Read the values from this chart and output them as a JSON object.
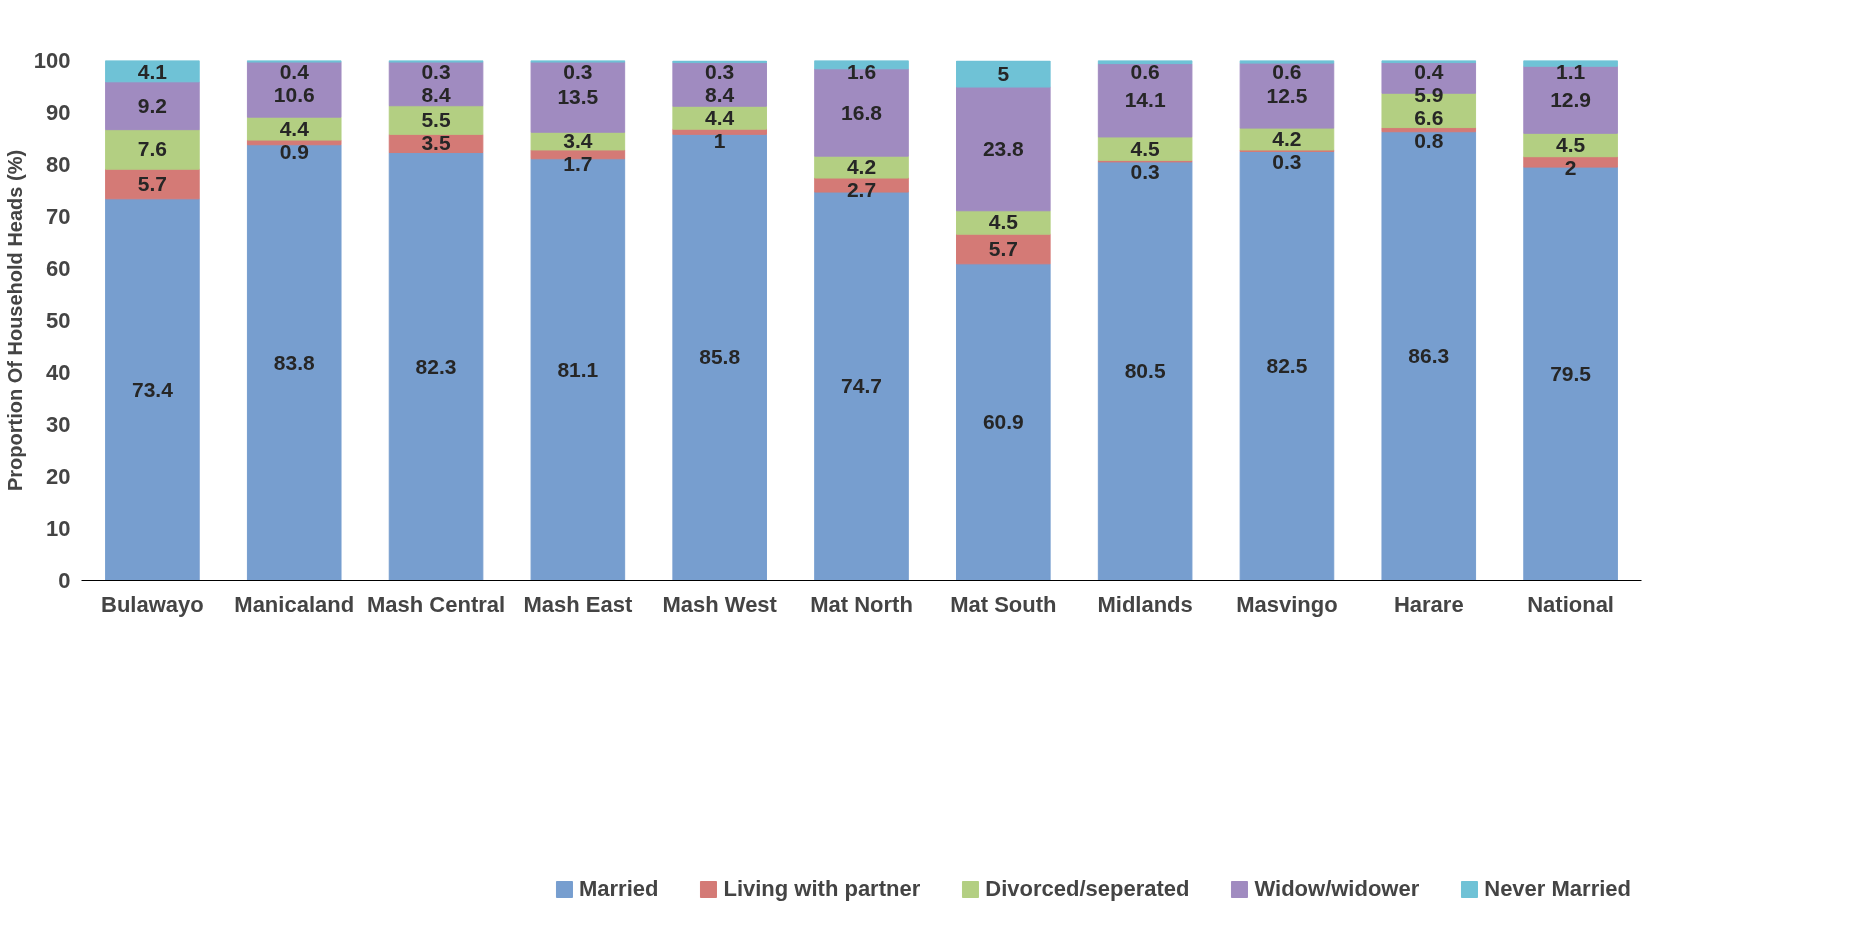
{
  "chart_data": {
    "type": "bar",
    "stacked": true,
    "ylabel": "Proportion Of Household Heads (%)",
    "categories": [
      "Bulawayo",
      "Manicaland",
      "Mash Central",
      "Mash East",
      "Mash West",
      "Mat North",
      "Mat South",
      "Midlands",
      "Masvingo",
      "Harare",
      "National"
    ],
    "series": [
      {
        "name": "Married",
        "color": "#779ecf",
        "values": [
          73.4,
          83.8,
          82.3,
          81.1,
          85.8,
          74.7,
          60.9,
          80.5,
          82.5,
          86.3,
          79.5
        ]
      },
      {
        "name": "Living with partner",
        "color": "#d47a76",
        "values": [
          5.7,
          0.9,
          3.5,
          1.7,
          1,
          2.7,
          5.7,
          0.3,
          0.3,
          0.8,
          2
        ]
      },
      {
        "name": "Divorced/seperated",
        "color": "#b3cf82",
        "values": [
          7.6,
          4.4,
          5.5,
          3.4,
          4.4,
          4.2,
          4.5,
          4.5,
          4.2,
          6.6,
          4.5
        ]
      },
      {
        "name": "Widow/widower",
        "color": "#a08bc0",
        "values": [
          9.2,
          10.6,
          8.4,
          13.5,
          8.4,
          16.8,
          23.8,
          14.1,
          12.5,
          5.9,
          12.9
        ]
      },
      {
        "name": "Never Married",
        "color": "#6fc2d6",
        "values": [
          4.1,
          0.4,
          0.3,
          0.3,
          0.3,
          1.6,
          5,
          0.6,
          0.6,
          0.4,
          1.1
        ]
      }
    ],
    "ylim": [
      0,
      100
    ],
    "yticks": [
      0,
      10,
      20,
      30,
      40,
      50,
      60,
      70,
      80,
      90,
      100
    ],
    "data_labels": true,
    "legend": "bottom",
    "grid": false
  }
}
